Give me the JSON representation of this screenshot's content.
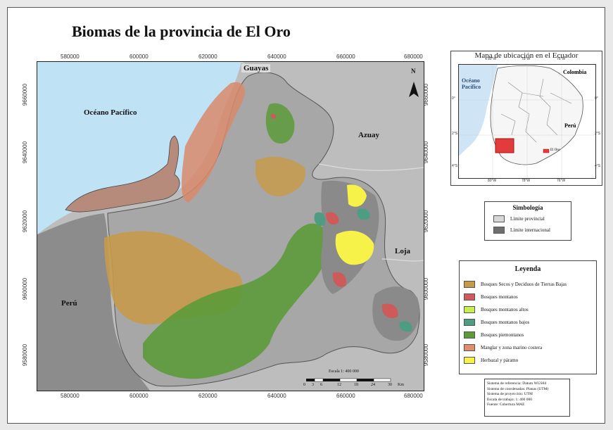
{
  "title": "Biomas de la provincia de El Oro",
  "map": {
    "x_ticks": [
      "580000",
      "600000",
      "620000",
      "640000",
      "660000",
      "680000"
    ],
    "y_ticks": [
      "9660000",
      "9640000",
      "9620000",
      "9600000",
      "9580000"
    ],
    "labels": {
      "ocean": "Océano Pacífico",
      "guayas": "Guayas",
      "azuay": "Azuay",
      "loja": "Loja",
      "peru": "Perú"
    },
    "north_letter": "N",
    "scale": {
      "title": "Escala 1: 400 000",
      "ticks": [
        "0",
        "3",
        "6",
        "12",
        "18",
        "24",
        "30"
      ],
      "unit": "Km"
    },
    "colors": {
      "ocean": "#bfe3f5",
      "land": "#bdbdbd",
      "outside": "#8c8c8c",
      "border": "#dddddd"
    }
  },
  "inset": {
    "title": "Mapa de ubicación en el Ecuador",
    "ocean_label": "Océano Pacífico",
    "colombia": "Colombia",
    "peru": "Perú",
    "el_oro": "El Oro",
    "lon_ticks": [
      "80°W",
      "78°W",
      "76°W"
    ],
    "lat_ticks": [
      "0°",
      "2°S",
      "4°S"
    ]
  },
  "simbologia": {
    "title": "Simbología",
    "items": [
      {
        "label": "Límite provincial",
        "color": "#d7d7d7"
      },
      {
        "label": "Límite internacional",
        "color": "#6e6e6e"
      }
    ]
  },
  "legend": {
    "title": "Leyenda",
    "items": [
      {
        "label": "Bosques Secos y Deciduos de Tierras Bajas",
        "color": "#c79a4b"
      },
      {
        "label": "Bosques montanos",
        "color": "#cf5a5a"
      },
      {
        "label": "Bosques montanos altos",
        "color": "#c8ef4f"
      },
      {
        "label": "Bosques montanos bajos",
        "color": "#4e9d83"
      },
      {
        "label": "Bosques piemontanos",
        "color": "#5c9b3a"
      },
      {
        "label": "Manglar y zona marino costera",
        "color": "#e08e6d"
      },
      {
        "label": "Herbazal y páramo",
        "color": "#f7f24a"
      }
    ]
  },
  "metadata": [
    "Sistema de referencia: Datum WGS84",
    "Sistema de coordenadas: Planas (UTM)",
    "Sistema de proyección: UTM",
    "Escala de trabajo: 1: 400 000",
    "Fuente: Cobertura MAE"
  ]
}
